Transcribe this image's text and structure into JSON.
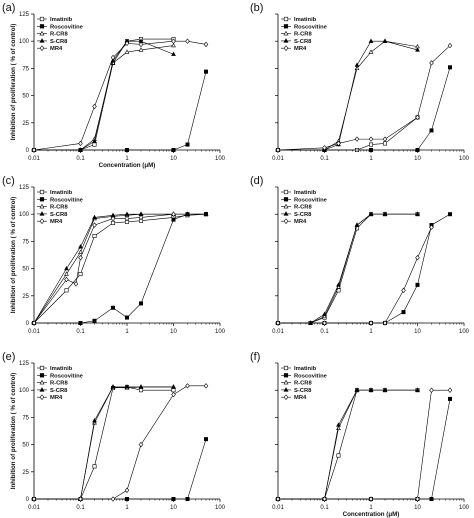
{
  "panels_layout": "3x2 grid",
  "legend_entries": [
    {
      "name": "Imatinib",
      "marker": "open-square",
      "color": "#000000"
    },
    {
      "name": "Roscovitine",
      "marker": "filled-square",
      "color": "#000000"
    },
    {
      "name": "R-CR8",
      "marker": "open-triangle",
      "color": "#000000"
    },
    {
      "name": "S-CR8",
      "marker": "filled-triangle",
      "color": "#000000"
    },
    {
      "name": "MR4",
      "marker": "open-diamond",
      "color": "#000000"
    }
  ],
  "chart_data": [
    {
      "type": "line",
      "panel": "(a)",
      "title": "",
      "xlabel": "Concentration (μM)",
      "ylabel": "Inhibition of proliferation ( % of control)",
      "xscale": "log",
      "xlim": [
        0.01,
        100
      ],
      "ylim": [
        0,
        125
      ],
      "xticks": [
        "0.01",
        "0.1",
        "1",
        "10",
        "100"
      ],
      "yticks": [
        "0",
        "25",
        "50",
        "75",
        "100",
        "125"
      ],
      "grid": false,
      "legend_position": "top-left",
      "series": [
        {
          "name": "Imatinib",
          "x": [
            0.01,
            0.1,
            0.2,
            0.5,
            1,
            2,
            10
          ],
          "y": [
            0,
            0,
            5,
            80,
            100,
            102,
            102
          ]
        },
        {
          "name": "Roscovitine",
          "x": [
            0.01,
            0.1,
            1,
            10,
            20,
            50
          ],
          "y": [
            0,
            0,
            0,
            0,
            5,
            72
          ]
        },
        {
          "name": "R-CR8",
          "x": [
            0.01,
            0.1,
            0.2,
            0.5,
            1,
            2,
            10
          ],
          "y": [
            0,
            0,
            10,
            80,
            90,
            92,
            96
          ]
        },
        {
          "name": "S-CR8",
          "x": [
            0.01,
            0.1,
            0.2,
            0.5,
            1,
            2,
            10
          ],
          "y": [
            0,
            0,
            8,
            82,
            100,
            100,
            88
          ]
        },
        {
          "name": "MR4",
          "x": [
            0.01,
            0.1,
            0.2,
            0.5,
            1,
            2,
            10,
            20,
            50
          ],
          "y": [
            0,
            6,
            40,
            85,
            98,
            97,
            100,
            100,
            97
          ]
        }
      ]
    },
    {
      "type": "line",
      "panel": "(b)",
      "title": "",
      "xlabel": "",
      "ylabel": "",
      "xscale": "log",
      "xlim": [
        0.01,
        100
      ],
      "ylim": [
        0,
        125
      ],
      "xticks": [
        "0.01",
        "0.1",
        "1",
        "10",
        "100"
      ],
      "yticks": [],
      "grid": false,
      "legend_position": "top-left",
      "series": [
        {
          "name": "Imatinib",
          "x": [
            0.01,
            0.1,
            0.5,
            1,
            2,
            10
          ],
          "y": [
            0,
            0,
            0,
            5,
            6,
            30
          ]
        },
        {
          "name": "Roscovitine",
          "x": [
            0.01,
            0.1,
            1,
            10,
            20,
            50
          ],
          "y": [
            0,
            0,
            0,
            0,
            18,
            76
          ]
        },
        {
          "name": "R-CR8",
          "x": [
            0.01,
            0.1,
            0.2,
            0.5,
            1,
            2,
            10
          ],
          "y": [
            0,
            0,
            8,
            75,
            90,
            100,
            95
          ]
        },
        {
          "name": "S-CR8",
          "x": [
            0.01,
            0.1,
            0.2,
            0.5,
            1,
            2,
            10
          ],
          "y": [
            0,
            0,
            5,
            78,
            100,
            100,
            92
          ]
        },
        {
          "name": "MR4",
          "x": [
            0.01,
            0.1,
            0.2,
            0.5,
            1,
            2,
            10,
            20,
            50
          ],
          "y": [
            0,
            2,
            6,
            10,
            10,
            10,
            30,
            80,
            96
          ]
        }
      ]
    },
    {
      "type": "line",
      "panel": "(c)",
      "title": "",
      "xlabel": "",
      "ylabel": "Inhibition of proliferation ( % of control)",
      "xscale": "log",
      "xlim": [
        0.01,
        100
      ],
      "ylim": [
        0,
        125
      ],
      "xticks": [
        "0.01",
        "0.1",
        "1",
        "10",
        "100"
      ],
      "yticks": [
        "0",
        "25",
        "50",
        "75",
        "100",
        "125"
      ],
      "grid": false,
      "legend_position": "top-left",
      "series": [
        {
          "name": "Imatinib",
          "x": [
            0.01,
            0.05,
            0.1,
            0.2,
            0.5,
            1,
            2,
            10,
            20,
            50
          ],
          "y": [
            0,
            30,
            45,
            80,
            92,
            93,
            94,
            97,
            99,
            100
          ]
        },
        {
          "name": "Roscovitine",
          "x": [
            0.01,
            0.1,
            0.2,
            0.5,
            1,
            2,
            10,
            20,
            50
          ],
          "y": [
            0,
            0,
            2,
            14,
            5,
            18,
            95,
            100,
            100
          ]
        },
        {
          "name": "R-CR8",
          "x": [
            0.01,
            0.05,
            0.1,
            0.2,
            0.5,
            1,
            2,
            10,
            20,
            50
          ],
          "y": [
            0,
            45,
            65,
            96,
            98,
            99,
            100,
            100,
            100,
            100
          ]
        },
        {
          "name": "S-CR8",
          "x": [
            0.01,
            0.05,
            0.1,
            0.2,
            0.5,
            1,
            2,
            10,
            20,
            50
          ],
          "y": [
            0,
            50,
            70,
            97,
            99,
            100,
            100,
            100,
            100,
            100
          ]
        },
        {
          "name": "MR4",
          "x": [
            0.01,
            0.05,
            0.08,
            0.1,
            0.2,
            0.5,
            1,
            2,
            10
          ],
          "y": [
            0,
            40,
            36,
            60,
            90,
            96,
            96,
            97,
            100
          ]
        }
      ]
    },
    {
      "type": "line",
      "panel": "(d)",
      "title": "",
      "xlabel": "",
      "ylabel": "",
      "xscale": "log",
      "xlim": [
        0.01,
        100
      ],
      "ylim": [
        0,
        125
      ],
      "xticks": [
        "0.01",
        "0.1",
        "1",
        "10",
        "100"
      ],
      "yticks": [],
      "grid": false,
      "legend_position": "top-left",
      "series": [
        {
          "name": "Imatinib",
          "x": [
            0.01,
            0.05,
            0.1,
            0.2,
            0.5,
            1,
            2,
            10
          ],
          "y": [
            0,
            0,
            5,
            30,
            87,
            100,
            100,
            100
          ]
        },
        {
          "name": "Roscovitine",
          "x": [
            0.01,
            0.1,
            1,
            2,
            5,
            10,
            20,
            50
          ],
          "y": [
            0,
            0,
            0,
            0,
            10,
            35,
            90,
            100
          ]
        },
        {
          "name": "R-CR8",
          "x": [
            0.01,
            0.05,
            0.1,
            0.2,
            0.5,
            1,
            2,
            10
          ],
          "y": [
            0,
            0,
            6,
            33,
            90,
            100,
            100,
            100
          ]
        },
        {
          "name": "S-CR8",
          "x": [
            0.01,
            0.05,
            0.1,
            0.2,
            0.5,
            1,
            2,
            10
          ],
          "y": [
            0,
            0,
            8,
            35,
            90,
            100,
            100,
            100
          ]
        },
        {
          "name": "MR4",
          "x": [
            0.01,
            0.1,
            1,
            2,
            5,
            10,
            20
          ],
          "y": [
            0,
            0,
            0,
            0,
            30,
            60,
            88
          ]
        }
      ]
    },
    {
      "type": "line",
      "panel": "(e)",
      "title": "",
      "xlabel": "",
      "ylabel": "Inhibition of proliferation ( % of control)",
      "xscale": "log",
      "xlim": [
        0.01,
        100
      ],
      "ylim": [
        0,
        125
      ],
      "xticks": [
        "0.01",
        "0.1",
        "1",
        "10",
        "100"
      ],
      "yticks": [
        "0",
        "25",
        "50",
        "75",
        "100",
        "125"
      ],
      "grid": false,
      "legend_position": "top-left",
      "series": [
        {
          "name": "Imatinib",
          "x": [
            0.01,
            0.1,
            0.2,
            0.5,
            1,
            2,
            10
          ],
          "y": [
            0,
            0,
            30,
            102,
            103,
            100,
            100
          ]
        },
        {
          "name": "Roscovitine",
          "x": [
            0.01,
            0.1,
            1,
            10,
            20,
            50
          ],
          "y": [
            0,
            0,
            0,
            0,
            0,
            55
          ]
        },
        {
          "name": "R-CR8",
          "x": [
            0.01,
            0.1,
            0.2,
            0.5,
            1,
            2,
            10
          ],
          "y": [
            0,
            0,
            70,
            103,
            102,
            103,
            103
          ]
        },
        {
          "name": "S-CR8",
          "x": [
            0.01,
            0.1,
            0.2,
            0.5,
            1,
            2,
            10
          ],
          "y": [
            0,
            0,
            72,
            103,
            103,
            103,
            103
          ]
        },
        {
          "name": "MR4",
          "x": [
            0.01,
            0.1,
            0.5,
            1,
            2,
            10,
            20,
            50
          ],
          "y": [
            0,
            0,
            0,
            8,
            50,
            96,
            104,
            104
          ]
        }
      ]
    },
    {
      "type": "line",
      "panel": "(f)",
      "title": "",
      "xlabel": "Concentration (μM)",
      "ylabel": "",
      "xscale": "log",
      "xlim": [
        0.01,
        100
      ],
      "ylim": [
        0,
        125
      ],
      "xticks": [
        "0.01",
        "0.1",
        "1",
        "10",
        "100"
      ],
      "yticks": [],
      "grid": false,
      "legend_position": "top-left",
      "series": [
        {
          "name": "Imatinib",
          "x": [
            0.01,
            0.1,
            0.2,
            0.5,
            1,
            2,
            10
          ],
          "y": [
            0,
            0,
            40,
            100,
            100,
            100,
            100
          ]
        },
        {
          "name": "Roscovitine",
          "x": [
            0.01,
            0.1,
            1,
            10,
            20,
            50
          ],
          "y": [
            0,
            0,
            0,
            0,
            0,
            92
          ]
        },
        {
          "name": "R-CR8",
          "x": [
            0.01,
            0.1,
            0.2,
            0.5,
            1,
            2,
            10
          ],
          "y": [
            0,
            0,
            65,
            100,
            100,
            100,
            100
          ]
        },
        {
          "name": "S-CR8",
          "x": [
            0.01,
            0.1,
            0.2,
            0.5,
            1,
            2,
            10
          ],
          "y": [
            0,
            0,
            68,
            100,
            100,
            100,
            100
          ]
        },
        {
          "name": "MR4",
          "x": [
            0.01,
            0.1,
            1,
            10,
            20,
            50
          ],
          "y": [
            0,
            0,
            0,
            0,
            100,
            100
          ]
        }
      ]
    }
  ]
}
